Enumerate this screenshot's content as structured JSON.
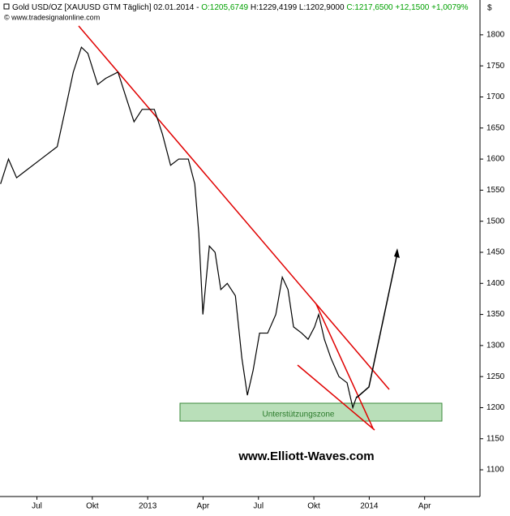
{
  "chart_data": {
    "type": "line",
    "title": "Gold USD/OZ [XAUUSD GTM  Täglich] 02.01.2014 -",
    "quote": {
      "open": "O:1205,6749",
      "high": "H:1229,4199",
      "low": "L:1202,9000",
      "close": "C:1217,6500 +12,1500 +1,0079%"
    },
    "copyright": "© www.tradesignalonline.com",
    "currency": "$",
    "annotations": {
      "zone": "Unterstützungszone",
      "watermark": "www.Elliott-Waves.com"
    },
    "x": [
      -1.97,
      -1.54,
      -1.1,
      -0.66,
      0.22,
      1.1,
      1.54,
      1.97,
      2.41,
      2.76,
      3.29,
      3.73,
      4.39,
      4.82,
      5.26,
      5.7,
      6.36,
      6.8,
      7.24,
      7.68,
      8.2,
      8.55,
      8.77,
      8.99,
      9.34,
      9.65,
      9.96,
      10.31,
      10.75,
      11.1,
      11.4,
      11.71,
      12.06,
      12.5,
      12.94,
      13.29,
      13.6,
      13.9,
      14.34,
      14.69,
      15.04,
      15.26,
      15.57,
      15.92,
      16.36,
      16.8,
      17.11,
      17.32
    ],
    "series": [
      {
        "name": "Gold USD/OZ",
        "color": "#000000",
        "values": [
          1560,
          1600,
          1570,
          1580,
          1600,
          1620,
          1680,
          1740,
          1780,
          1770,
          1720,
          1730,
          1740,
          1700,
          1660,
          1680,
          1680,
          1640,
          1590,
          1600,
          1600,
          1560,
          1480,
          1350,
          1460,
          1450,
          1390,
          1400,
          1380,
          1280,
          1220,
          1260,
          1320,
          1320,
          1350,
          1410,
          1390,
          1330,
          1320,
          1310,
          1330,
          1350,
          1310,
          1280,
          1250,
          1240,
          1200,
          1218
        ]
      }
    ],
    "xlim": [
      -2,
      24
    ],
    "xticks": [
      {
        "value": 0,
        "label": "Jul"
      },
      {
        "value": 3,
        "label": "Okt"
      },
      {
        "value": 6,
        "label": "2013"
      },
      {
        "value": 9,
        "label": "Apr"
      },
      {
        "value": 12,
        "label": "Jul"
      },
      {
        "value": 15,
        "label": "Okt"
      },
      {
        "value": 18,
        "label": "2014"
      },
      {
        "value": 21,
        "label": "Apr"
      }
    ],
    "ylim": [
      1057,
      1856
    ],
    "yticks": [
      1100,
      1150,
      1200,
      1250,
      1300,
      1350,
      1400,
      1450,
      1500,
      1550,
      1600,
      1650,
      1700,
      1750,
      1800
    ]
  }
}
